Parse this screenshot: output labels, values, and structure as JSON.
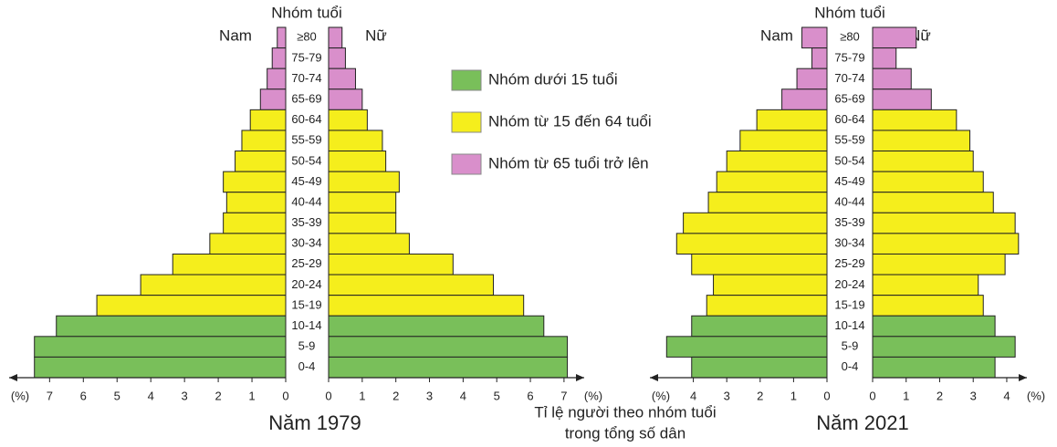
{
  "chart_data": [
    {
      "type": "pyramid",
      "title": "Năm 1979",
      "age_axis_label": "Nhóm tuổi",
      "unit_label": "(%)",
      "categories": [
        "≥80",
        "75-79",
        "70-74",
        "65-69",
        "60-64",
        "55-59",
        "50-54",
        "45-49",
        "40-44",
        "35-39",
        "30-34",
        "25-29",
        "20-24",
        "15-19",
        "10-14",
        "5-9",
        "0-4"
      ],
      "colors": [
        "#d98fcb",
        "#d98fcb",
        "#d98fcb",
        "#d98fcb",
        "#f5ee1c",
        "#f5ee1c",
        "#f5ee1c",
        "#f5ee1c",
        "#f5ee1c",
        "#f5ee1c",
        "#f5ee1c",
        "#f5ee1c",
        "#f5ee1c",
        "#f5ee1c",
        "#79bf5a",
        "#79bf5a",
        "#79bf5a"
      ],
      "series": [
        {
          "name": "Nam",
          "side": "left",
          "xlim": [
            0,
            8.2
          ],
          "xticks": [
            0,
            1,
            2,
            3,
            4,
            5,
            6,
            7
          ],
          "values": [
            0.25,
            0.4,
            0.55,
            0.75,
            1.05,
            1.3,
            1.5,
            1.85,
            1.75,
            1.85,
            2.25,
            3.35,
            4.3,
            5.6,
            6.8,
            7.45,
            7.45
          ]
        },
        {
          "name": "Nữ",
          "side": "right",
          "xlim": [
            0,
            7.6
          ],
          "xticks": [
            0,
            1,
            2,
            3,
            4,
            5,
            6,
            7
          ],
          "values": [
            0.4,
            0.5,
            0.8,
            1.0,
            1.15,
            1.6,
            1.7,
            2.1,
            2.0,
            2.0,
            2.4,
            3.7,
            4.9,
            5.8,
            6.4,
            7.1,
            7.1
          ]
        }
      ]
    },
    {
      "type": "pyramid",
      "title": "Năm 2021",
      "age_axis_label": "Nhóm tuổi",
      "unit_label": "(%)",
      "categories": [
        "≥80",
        "75-79",
        "70-74",
        "65-69",
        "60-64",
        "55-59",
        "50-54",
        "45-49",
        "40-44",
        "35-39",
        "30-34",
        "25-29",
        "20-24",
        "15-19",
        "10-14",
        "5-9",
        "0-4"
      ],
      "colors": [
        "#d98fcb",
        "#d98fcb",
        "#d98fcb",
        "#d98fcb",
        "#f5ee1c",
        "#f5ee1c",
        "#f5ee1c",
        "#f5ee1c",
        "#f5ee1c",
        "#f5ee1c",
        "#f5ee1c",
        "#f5ee1c",
        "#f5ee1c",
        "#f5ee1c",
        "#79bf5a",
        "#79bf5a",
        "#79bf5a"
      ],
      "series": [
        {
          "name": "Nam",
          "side": "left",
          "xlim": [
            0,
            5.3
          ],
          "xticks": [
            0,
            1,
            2,
            3,
            4
          ],
          "values": [
            0.75,
            0.45,
            0.9,
            1.35,
            2.1,
            2.6,
            3.0,
            3.3,
            3.55,
            4.3,
            4.5,
            4.05,
            3.4,
            3.6,
            4.05,
            4.8,
            4.05
          ]
        },
        {
          "name": "Nữ",
          "side": "right",
          "xlim": [
            0,
            4.6
          ],
          "xticks": [
            0,
            1,
            2,
            3,
            4
          ],
          "values": [
            1.3,
            0.7,
            1.15,
            1.75,
            2.5,
            2.9,
            3.0,
            3.3,
            3.6,
            4.25,
            4.35,
            3.95,
            3.15,
            3.3,
            3.65,
            4.25,
            3.65
          ]
        }
      ]
    }
  ],
  "legend": [
    {
      "name": "Nhóm dưới 15 tuổi",
      "color": "#79bf5a"
    },
    {
      "name": "Nhóm từ 15 đến 64 tuổi",
      "color": "#f5ee1c"
    },
    {
      "name": "Nhóm từ 65 tuổi trở lên",
      "color": "#d98fcb"
    }
  ],
  "caption": [
    "Tỉ lệ người theo nhóm tuổi",
    "trong tổng số dân"
  ]
}
